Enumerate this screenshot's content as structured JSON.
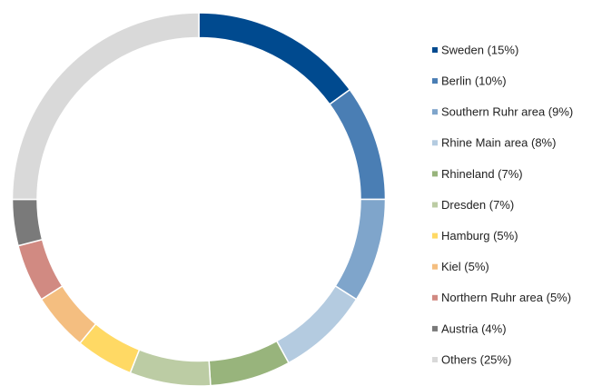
{
  "chart_data": {
    "type": "donut",
    "categories": [
      "Sweden (15%)",
      "Berlin (10%)",
      "Southern Ruhr area (9%)",
      "Rhine Main area (8%)",
      "Rhineland (7%)",
      "Dresden (7%)",
      "Hamburg (5%)",
      "Kiel (5%)",
      "Northern Ruhr area (5%)",
      "Austria (4%)",
      "Others (25%)"
    ],
    "values": [
      15,
      10,
      9,
      8,
      7,
      7,
      5,
      5,
      5,
      4,
      25
    ],
    "colors": [
      "#004a8f",
      "#4a7eb4",
      "#7fa5cb",
      "#b4cbe0",
      "#98b47c",
      "#bccca4",
      "#ffd964",
      "#f4be80",
      "#d18a82",
      "#7a7a7a",
      "#d9d9d9"
    ],
    "legend": "right"
  }
}
